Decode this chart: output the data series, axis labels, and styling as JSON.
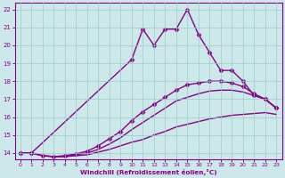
{
  "xlabel": "Windchill (Refroidissement éolien,°C)",
  "bg_color": "#cce8e8",
  "line_color": "#880088",
  "grid_color": "#99cccc",
  "ylim": [
    13.65,
    22.35
  ],
  "xlim": [
    -0.5,
    23.5
  ],
  "yticks": [
    14,
    15,
    16,
    17,
    18,
    19,
    20,
    21,
    22
  ],
  "xticks": [
    0,
    1,
    2,
    3,
    4,
    5,
    6,
    7,
    8,
    9,
    10,
    11,
    12,
    13,
    14,
    15,
    16,
    17,
    18,
    19,
    20,
    21,
    22,
    23
  ],
  "markersize": 2.5,
  "linewidth": 1.0,
  "lines": [
    {
      "x": [
        0,
        1,
        2,
        3,
        4,
        5,
        6,
        7,
        8,
        9,
        10,
        11,
        12,
        13,
        14,
        15,
        16,
        17,
        18,
        19,
        20,
        21,
        22,
        23
      ],
      "y": [
        14.0,
        14.0,
        13.85,
        13.8,
        13.8,
        13.85,
        13.9,
        14.05,
        14.2,
        14.4,
        14.6,
        14.75,
        15.0,
        15.2,
        15.45,
        15.6,
        15.75,
        15.9,
        16.0,
        16.1,
        16.15,
        16.2,
        16.25,
        16.15
      ],
      "has_markers": false
    },
    {
      "x": [
        0,
        1,
        2,
        3,
        4,
        5,
        6,
        7,
        8,
        9,
        10,
        11,
        12,
        13,
        14,
        15,
        16,
        17,
        18,
        19,
        20,
        21,
        22,
        23
      ],
      "y": [
        14.0,
        14.0,
        13.85,
        13.8,
        13.8,
        13.9,
        14.0,
        14.2,
        14.5,
        14.85,
        15.3,
        15.7,
        16.1,
        16.5,
        16.9,
        17.1,
        17.3,
        17.45,
        17.5,
        17.5,
        17.4,
        17.2,
        17.0,
        16.5
      ],
      "has_markers": false
    },
    {
      "x": [
        0,
        1,
        2,
        3,
        4,
        5,
        6,
        7,
        8,
        9,
        10,
        11,
        12,
        13,
        14,
        15,
        16,
        17,
        18,
        19,
        20,
        21,
        22,
        23
      ],
      "y": [
        14.0,
        14.0,
        13.85,
        13.8,
        13.85,
        13.95,
        14.1,
        14.4,
        14.8,
        15.2,
        15.8,
        16.3,
        16.7,
        17.1,
        17.5,
        17.8,
        17.9,
        18.0,
        18.0,
        17.9,
        17.7,
        17.3,
        17.0,
        16.5
      ],
      "has_markers": true
    },
    {
      "x": [
        0,
        1,
        10,
        11,
        12,
        13,
        14,
        15,
        16,
        17,
        18,
        19,
        20,
        21,
        22,
        23
      ],
      "y": [
        14.0,
        14.0,
        19.2,
        20.9,
        20.0,
        20.9,
        20.9,
        22.0,
        20.6,
        19.6,
        18.6,
        18.6,
        18.0,
        17.2,
        17.0,
        16.5
      ],
      "has_markers": true
    }
  ]
}
